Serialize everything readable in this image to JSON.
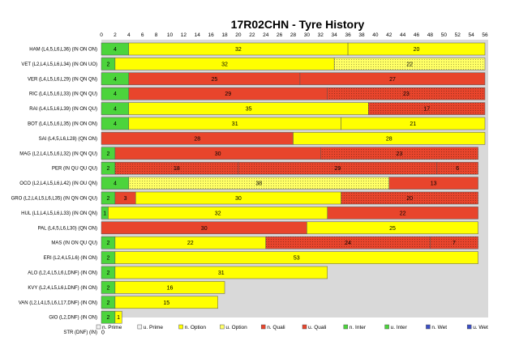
{
  "chart_data": {
    "type": "bar",
    "orientation": "horizontal-stacked",
    "title": "17R02CHN - Tyre History",
    "xlim": [
      0,
      56
    ],
    "xticks": [
      0,
      2,
      4,
      6,
      8,
      10,
      12,
      14,
      16,
      18,
      20,
      22,
      24,
      26,
      28,
      30,
      32,
      34,
      36,
      38,
      40,
      42,
      44,
      46,
      48,
      50,
      52,
      54,
      56
    ],
    "legend_position": "bottom",
    "tyre_types": {
      "n_prime": {
        "label": "n. Prime",
        "color": "#f2f2f2"
      },
      "u_prime": {
        "label": "u. Prime",
        "color": "#f2f2f2"
      },
      "n_option": {
        "label": "n. Option",
        "color": "#ffff00"
      },
      "u_option": {
        "label": "u. Option",
        "color": "#ffff66"
      },
      "n_quali": {
        "label": "n. Quali",
        "color": "#e8452c"
      },
      "u_quali": {
        "label": "u. Quali",
        "color": "#e8452c"
      },
      "n_inter": {
        "label": "n. Inter",
        "color": "#4cd43c"
      },
      "u_inter": {
        "label": "u. Inter",
        "color": "#4cd43c"
      },
      "n_wet": {
        "label": "n. Wet",
        "color": "#3b4fc4"
      },
      "u_wet": {
        "label": "u. Wet",
        "color": "#3b4fc4"
      }
    },
    "legend_order": [
      "n_prime",
      "u_prime",
      "n_option",
      "u_option",
      "n_quali",
      "u_quali",
      "n_inter",
      "u_inter",
      "n_wet",
      "u_wet"
    ],
    "drivers": [
      {
        "label": "HAM (L4,5,L6,L36) (IN ON ON)",
        "stints": [
          {
            "tyre": "n_inter",
            "laps": 4
          },
          {
            "tyre": "n_option",
            "laps": 32
          },
          {
            "tyre": "n_option",
            "laps": 20
          }
        ]
      },
      {
        "label": "VET (L2,L4,L5,L6,L34) (IN ON UO)",
        "stints": [
          {
            "tyre": "n_inter",
            "laps": 2
          },
          {
            "tyre": "n_option",
            "laps": 32
          },
          {
            "tyre": "u_option",
            "laps": 22
          }
        ]
      },
      {
        "label": "VER (L4,L5,L6,L29) (IN QN QN)",
        "stints": [
          {
            "tyre": "n_inter",
            "laps": 4
          },
          {
            "tyre": "n_quali",
            "laps": 25
          },
          {
            "tyre": "n_quali",
            "laps": 27
          }
        ]
      },
      {
        "label": "RIC (L4,L5,L6,L33) (IN QN QU)",
        "stints": [
          {
            "tyre": "n_inter",
            "laps": 4
          },
          {
            "tyre": "n_quali",
            "laps": 29
          },
          {
            "tyre": "u_quali",
            "laps": 23
          }
        ]
      },
      {
        "label": "RAI (L4,L5,L6,L39) (IN ON QU)",
        "stints": [
          {
            "tyre": "n_inter",
            "laps": 4
          },
          {
            "tyre": "n_option",
            "laps": 35
          },
          {
            "tyre": "u_quali",
            "laps": 17
          }
        ]
      },
      {
        "label": "BOT (L4,L5,L6,L35) (IN ON ON)",
        "stints": [
          {
            "tyre": "n_inter",
            "laps": 4
          },
          {
            "tyre": "n_option",
            "laps": 31
          },
          {
            "tyre": "n_option",
            "laps": 21
          }
        ]
      },
      {
        "label": "SAI (L4,5,L6,L28) (QN ON)",
        "stints": [
          {
            "tyre": "n_quali",
            "laps": 28
          },
          {
            "tyre": "n_option",
            "laps": 28
          }
        ]
      },
      {
        "label": "MAG (L2,L4,L5,L6,L32) (IN QN QU)",
        "stints": [
          {
            "tyre": "n_inter",
            "laps": 2
          },
          {
            "tyre": "n_quali",
            "laps": 30
          },
          {
            "tyre": "u_quali",
            "laps": 23
          }
        ]
      },
      {
        "label": "PER  (IN QU QU QU)",
        "stints": [
          {
            "tyre": "n_inter",
            "laps": 2
          },
          {
            "tyre": "u_quali",
            "laps": 18
          },
          {
            "tyre": "u_quali",
            "laps": 29
          },
          {
            "tyre": "u_quali",
            "laps": 6
          }
        ]
      },
      {
        "label": "OCO (L2,L4,L5,L6,L42) (IN OU QN)",
        "stints": [
          {
            "tyre": "n_inter",
            "laps": 4
          },
          {
            "tyre": "u_option",
            "laps": 38
          },
          {
            "tyre": "n_quali",
            "laps": 13
          }
        ]
      },
      {
        "label": "GRO (L2,L4,L5,L6,L35) (IN QN ON QU)",
        "stints": [
          {
            "tyre": "n_inter",
            "laps": 2
          },
          {
            "tyre": "n_quali",
            "laps": 3
          },
          {
            "tyre": "n_option",
            "laps": 30
          },
          {
            "tyre": "u_quali",
            "laps": 20
          }
        ]
      },
      {
        "label": "HUL (L1,L4,L5,L6,L33) (IN ON QN)",
        "stints": [
          {
            "tyre": "n_inter",
            "laps": 1
          },
          {
            "tyre": "n_option",
            "laps": 32
          },
          {
            "tyre": "n_quali",
            "laps": 22
          }
        ]
      },
      {
        "label": "PAL (L4,5,L6,L30) (QN ON)",
        "stints": [
          {
            "tyre": "n_quali",
            "laps": 30
          },
          {
            "tyre": "n_option",
            "laps": 25
          }
        ]
      },
      {
        "label": "MAS  (IN ON QU QU)",
        "stints": [
          {
            "tyre": "n_inter",
            "laps": 2
          },
          {
            "tyre": "n_option",
            "laps": 22
          },
          {
            "tyre": "u_quali",
            "laps": 24
          },
          {
            "tyre": "u_quali",
            "laps": 7
          }
        ]
      },
      {
        "label": "ERI (L2,4,L5,L6) (IN ON)",
        "stints": [
          {
            "tyre": "n_inter",
            "laps": 2
          },
          {
            "tyre": "n_option",
            "laps": 53
          }
        ]
      },
      {
        "label": "ALO (L2,4,L5,L6,LDNF) (IN ON)",
        "stints": [
          {
            "tyre": "n_inter",
            "laps": 2
          },
          {
            "tyre": "n_option",
            "laps": 31
          }
        ]
      },
      {
        "label": "KVY (L2,4,L5,L6,LDNF) (IN ON)",
        "stints": [
          {
            "tyre": "n_inter",
            "laps": 2
          },
          {
            "tyre": "n_option",
            "laps": 16
          }
        ]
      },
      {
        "label": "VAN (L2,L4,L5,L6,L17,DNF) (IN ON)",
        "stints": [
          {
            "tyre": "n_inter",
            "laps": 2
          },
          {
            "tyre": "n_option",
            "laps": 15
          }
        ]
      },
      {
        "label": "GIO (L2,DNF) (IN ON)",
        "stints": [
          {
            "tyre": "n_inter",
            "laps": 2
          },
          {
            "tyre": "n_option",
            "laps": 1
          }
        ]
      },
      {
        "label": "STR (DNF) (IN)",
        "stints": [
          {
            "tyre": "n_inter",
            "laps": 0
          }
        ]
      }
    ]
  }
}
